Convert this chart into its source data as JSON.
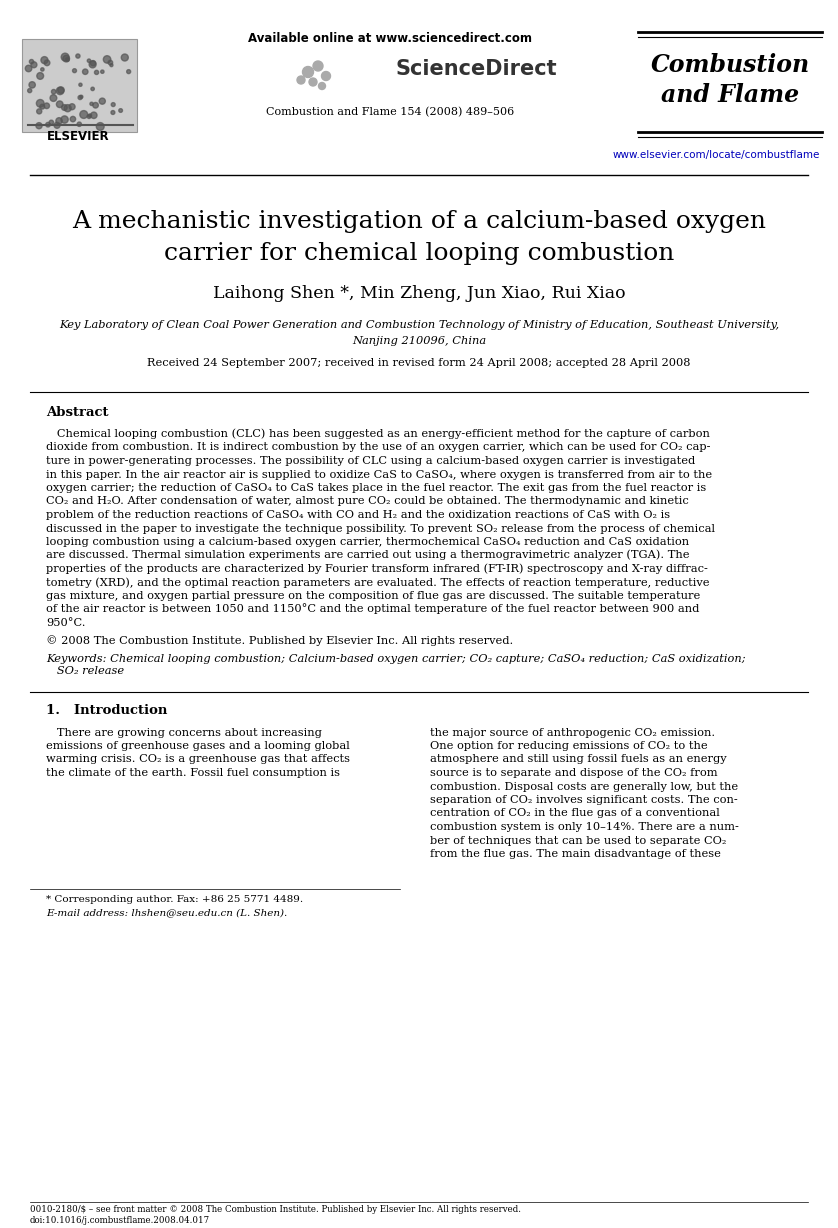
{
  "bg_color": "#ffffff",
  "available_online": "Available online at www.sciencedirect.com",
  "sciencedirect": "ScienceDirect",
  "journal_ref": "Combustion and Flame 154 (2008) 489–506",
  "journal_name_line1": "Combustion",
  "journal_name_line2": "and Flame",
  "elsevier_text": "ELSEVIER",
  "url": "www.elsevier.com/locate/combustflame",
  "title_line1": "A mechanistic investigation of a calcium-based oxygen",
  "title_line2": "carrier for chemical looping combustion",
  "authors": "Laihong Shen *, Min Zheng, Jun Xiao, Rui Xiao",
  "affiliation_line1": "Key Laboratory of Clean Coal Power Generation and Combustion Technology of Ministry of Education, Southeast University,",
  "affiliation_line2": "Nanjing 210096, China",
  "received": "Received 24 September 2007; received in revised form 24 April 2008; accepted 28 April 2008",
  "abstract_title": "Abstract",
  "abstract_lines": [
    "   Chemical looping combustion (CLC) has been suggested as an energy-efficient method for the capture of carbon",
    "dioxide from combustion. It is indirect combustion by the use of an oxygen carrier, which can be used for CO₂ cap-",
    "ture in power-generating processes. The possibility of CLC using a calcium-based oxygen carrier is investigated",
    "in this paper. In the air reactor air is supplied to oxidize CaS to CaSO₄, where oxygen is transferred from air to the",
    "oxygen carrier; the reduction of CaSO₄ to CaS takes place in the fuel reactor. The exit gas from the fuel reactor is",
    "CO₂ and H₂O. After condensation of water, almost pure CO₂ could be obtained. The thermodynamic and kinetic",
    "problem of the reduction reactions of CaSO₄ with CO and H₂ and the oxidization reactions of CaS with O₂ is",
    "discussed in the paper to investigate the technique possibility. To prevent SO₂ release from the process of chemical",
    "looping combustion using a calcium-based oxygen carrier, thermochemical CaSO₄ reduction and CaS oxidation",
    "are discussed. Thermal simulation experiments are carried out using a thermogravimetric analyzer (TGA). The",
    "properties of the products are characterized by Fourier transform infrared (FT-IR) spectroscopy and X-ray diffrac-",
    "tometry (XRD), and the optimal reaction parameters are evaluated. The effects of reaction temperature, reductive",
    "gas mixture, and oxygen partial pressure on the composition of flue gas are discussed. The suitable temperature",
    "of the air reactor is between 1050 and 1150°C and the optimal temperature of the fuel reactor between 900 and",
    "950°C."
  ],
  "copyright": "© 2008 The Combustion Institute. Published by Elsevier Inc. All rights reserved.",
  "keywords_label": "Keywords:",
  "keywords_text": " Chemical looping combustion; Calcium-based oxygen carrier; CO₂ capture; CaSO₄ reduction; CaS oxidization;",
  "keywords_line2": "   SO₂ release",
  "section_title": "1.   Introduction",
  "intro_left_lines": [
    "   There are growing concerns about increasing",
    "emissions of greenhouse gases and a looming global",
    "warming crisis. CO₂ is a greenhouse gas that affects",
    "the climate of the earth. Fossil fuel consumption is"
  ],
  "intro_right_lines": [
    "the major source of anthropogenic CO₂ emission.",
    "One option for reducing emissions of CO₂ to the",
    "atmosphere and still using fossil fuels as an energy",
    "source is to separate and dispose of the CO₂ from",
    "combustion. Disposal costs are generally low, but the",
    "separation of CO₂ involves significant costs. The con-",
    "centration of CO₂ in the flue gas of a conventional",
    "combustion system is only 10–14%. There are a num-",
    "ber of techniques that can be used to separate CO₂",
    "from the flue gas. The main disadvantage of these"
  ],
  "footnote1": "* Corresponding author. Fax: +86 25 5771 4489.",
  "footnote2": "E-mail address: lhshen@seu.edu.cn (L. Shen).",
  "footer1": "0010-2180/$ – see front matter © 2008 The Combustion Institute. Published by Elsevier Inc. All rights reserved.",
  "footer2": "doi:10.1016/j.combustflame.2008.04.017"
}
